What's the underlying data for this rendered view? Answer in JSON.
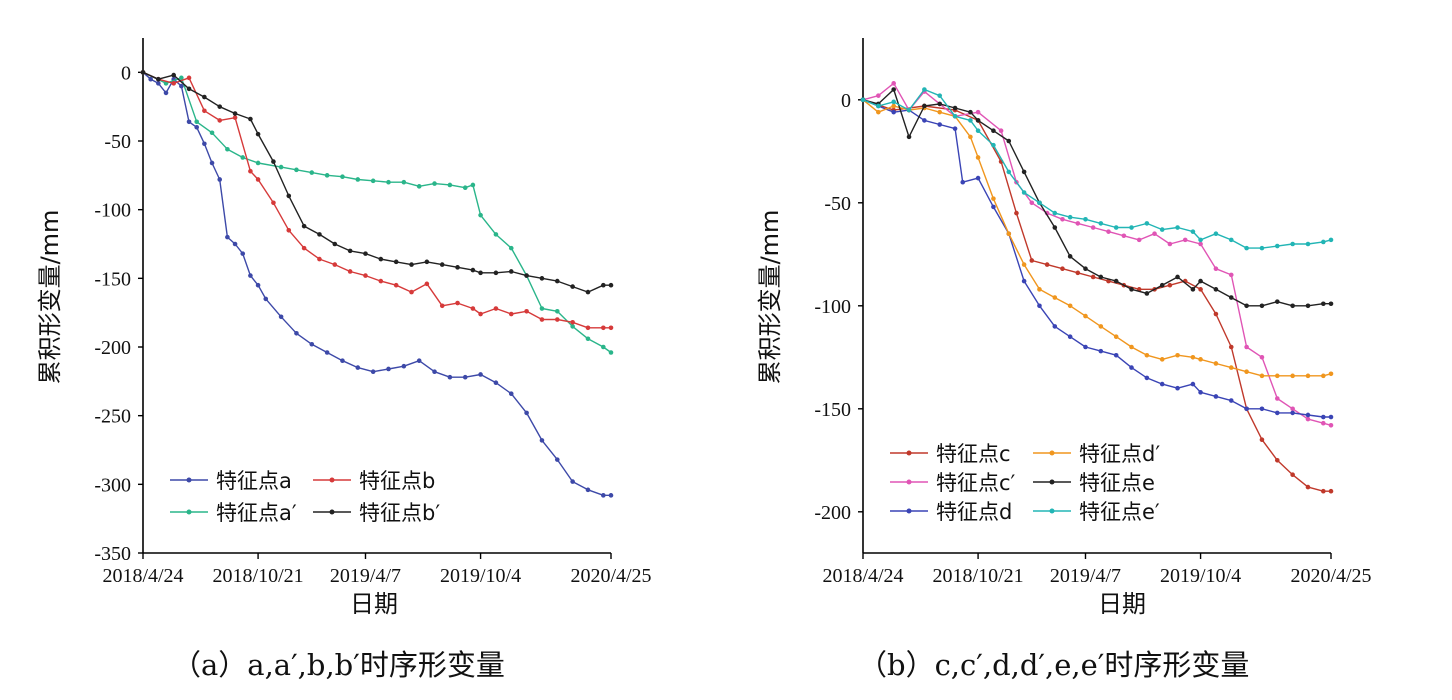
{
  "captions": {
    "a": "（a）a,a′,b,b′时序形变量",
    "b": "（b）c,c′,d,d′,e,e′时序形变量"
  },
  "chart_data": [
    {
      "type": "line",
      "title": "",
      "xlabel": "日期",
      "ylabel": "累积形变量/mm",
      "ylim": [
        -350,
        25
      ],
      "yticks": [
        0,
        -50,
        -100,
        -150,
        -200,
        -250,
        -300,
        -350
      ],
      "x_range": [
        "2018-04-24",
        "2020-04-25"
      ],
      "xticks": [
        "2018/4/24",
        "2018/10/21",
        "2019/4/7",
        "2019/10/4",
        "2020/4/25"
      ],
      "grid": false,
      "legend_position": "bottom-left",
      "legend_columns": 2,
      "series": [
        {
          "name": "特征点a",
          "color": "#3d49a8",
          "x": [
            "2018-04-24",
            "2018-05-06",
            "2018-05-18",
            "2018-05-30",
            "2018-06-11",
            "2018-06-23",
            "2018-07-05",
            "2018-07-17",
            "2018-07-29",
            "2018-08-10",
            "2018-08-22",
            "2018-09-03",
            "2018-09-15",
            "2018-09-27",
            "2018-10-09",
            "2018-10-21",
            "2018-11-02",
            "2018-11-26",
            "2018-12-20",
            "2019-01-13",
            "2019-02-06",
            "2019-03-02",
            "2019-03-26",
            "2019-04-19",
            "2019-05-13",
            "2019-06-06",
            "2019-06-30",
            "2019-07-24",
            "2019-08-17",
            "2019-09-10",
            "2019-10-04",
            "2019-10-28",
            "2019-11-21",
            "2019-12-15",
            "2020-01-08",
            "2020-02-01",
            "2020-02-25",
            "2020-03-20",
            "2020-04-13",
            "2020-04-25"
          ],
          "y": [
            0,
            -5,
            -8,
            -15,
            -5,
            -10,
            -36,
            -40,
            -52,
            -66,
            -78,
            -120,
            -125,
            -132,
            -148,
            -155,
            -165,
            -178,
            -190,
            -198,
            -204,
            -210,
            -215,
            -218,
            -216,
            -214,
            -210,
            -218,
            -222,
            -222,
            -220,
            -226,
            -234,
            -248,
            -268,
            -282,
            -298,
            -304,
            -308,
            -308
          ]
        },
        {
          "name": "特征点a′",
          "color": "#2ab58a",
          "x": [
            "2018-04-24",
            "2018-05-30",
            "2018-06-23",
            "2018-07-17",
            "2018-08-10",
            "2018-09-03",
            "2018-09-27",
            "2018-10-21",
            "2018-11-26",
            "2018-12-20",
            "2019-01-13",
            "2019-02-06",
            "2019-03-02",
            "2019-03-26",
            "2019-04-19",
            "2019-05-13",
            "2019-06-06",
            "2019-06-30",
            "2019-07-24",
            "2019-08-17",
            "2019-09-10",
            "2019-09-22",
            "2019-10-04",
            "2019-10-28",
            "2019-11-21",
            "2019-12-15",
            "2020-01-08",
            "2020-02-01",
            "2020-02-25",
            "2020-03-20",
            "2020-04-13",
            "2020-04-25"
          ],
          "y": [
            0,
            -8,
            -4,
            -36,
            -44,
            -56,
            -62,
            -66,
            -69,
            -71,
            -73,
            -75,
            -76,
            -78,
            -79,
            -80,
            -80,
            -83,
            -81,
            -82,
            -84,
            -82,
            -104,
            -118,
            -128,
            -148,
            -172,
            -174,
            -185,
            -194,
            -200,
            -204
          ]
        },
        {
          "name": "特征点b",
          "color": "#d63a3a",
          "x": [
            "2018-04-24",
            "2018-05-18",
            "2018-06-11",
            "2018-07-05",
            "2018-07-29",
            "2018-08-22",
            "2018-09-15",
            "2018-10-09",
            "2018-10-21",
            "2018-11-14",
            "2018-12-08",
            "2019-01-01",
            "2019-01-25",
            "2019-02-18",
            "2019-03-14",
            "2019-04-07",
            "2019-05-01",
            "2019-05-25",
            "2019-06-18",
            "2019-07-12",
            "2019-08-05",
            "2019-08-29",
            "2019-09-22",
            "2019-10-04",
            "2019-10-28",
            "2019-11-21",
            "2019-12-15",
            "2020-01-08",
            "2020-02-01",
            "2020-02-25",
            "2020-03-20",
            "2020-04-13",
            "2020-04-25"
          ],
          "y": [
            0,
            -5,
            -8,
            -4,
            -28,
            -35,
            -33,
            -72,
            -78,
            -95,
            -115,
            -128,
            -136,
            -140,
            -145,
            -148,
            -152,
            -155,
            -160,
            -154,
            -170,
            -168,
            -172,
            -176,
            -172,
            -176,
            -174,
            -180,
            -180,
            -182,
            -186,
            -186,
            -186
          ]
        },
        {
          "name": "特征点b′",
          "color": "#222222",
          "x": [
            "2018-04-24",
            "2018-05-18",
            "2018-06-11",
            "2018-07-05",
            "2018-07-29",
            "2018-08-22",
            "2018-09-15",
            "2018-10-09",
            "2018-10-21",
            "2018-11-14",
            "2018-12-08",
            "2019-01-01",
            "2019-01-25",
            "2019-02-18",
            "2019-03-14",
            "2019-04-07",
            "2019-05-01",
            "2019-05-25",
            "2019-06-18",
            "2019-07-12",
            "2019-08-05",
            "2019-08-29",
            "2019-09-22",
            "2019-10-04",
            "2019-10-28",
            "2019-11-21",
            "2019-12-15",
            "2020-01-08",
            "2020-02-01",
            "2020-02-25",
            "2020-03-20",
            "2020-04-13",
            "2020-04-25"
          ],
          "y": [
            0,
            -5,
            -2,
            -12,
            -18,
            -25,
            -30,
            -34,
            -45,
            -65,
            -90,
            -112,
            -118,
            -125,
            -130,
            -132,
            -136,
            -138,
            -140,
            -138,
            -140,
            -142,
            -144,
            -146,
            -146,
            -145,
            -148,
            -150,
            -152,
            -156,
            -160,
            -155,
            -155
          ]
        }
      ]
    },
    {
      "type": "line",
      "title": "",
      "xlabel": "日期",
      "ylabel": "累积形变量/mm",
      "ylim": [
        -220,
        30
      ],
      "yticks": [
        0,
        -50,
        -100,
        -150,
        -200
      ],
      "x_range": [
        "2018-04-24",
        "2020-04-25"
      ],
      "xticks": [
        "2018/4/24",
        "2018/10/21",
        "2019/4/7",
        "2019/10/4",
        "2020/4/25"
      ],
      "grid": false,
      "legend_position": "bottom-left",
      "legend_columns": 2,
      "series": [
        {
          "name": "特征点c",
          "color": "#c0392b",
          "x": [
            "2018-04-24",
            "2018-06-11",
            "2018-07-29",
            "2018-09-15",
            "2018-10-21",
            "2018-11-26",
            "2018-12-20",
            "2019-01-13",
            "2019-02-06",
            "2019-03-02",
            "2019-03-26",
            "2019-04-19",
            "2019-05-13",
            "2019-06-06",
            "2019-06-30",
            "2019-07-24",
            "2019-08-17",
            "2019-09-10",
            "2019-10-04",
            "2019-10-28",
            "2019-11-21",
            "2019-12-15",
            "2020-01-08",
            "2020-02-01",
            "2020-02-25",
            "2020-03-20",
            "2020-04-13",
            "2020-04-25"
          ],
          "y": [
            0,
            -5,
            -3,
            -5,
            -10,
            -30,
            -55,
            -78,
            -80,
            -82,
            -84,
            -86,
            -88,
            -90,
            -92,
            -92,
            -90,
            -88,
            -92,
            -104,
            -120,
            -150,
            -165,
            -175,
            -182,
            -188,
            -190,
            -190
          ]
        },
        {
          "name": "特征点c′",
          "color": "#e055b5",
          "x": [
            "2018-04-24",
            "2018-05-18",
            "2018-06-11",
            "2018-07-05",
            "2018-07-29",
            "2018-08-22",
            "2018-09-15",
            "2018-10-21",
            "2018-11-26",
            "2018-12-20",
            "2019-01-13",
            "2019-02-06",
            "2019-03-02",
            "2019-03-26",
            "2019-04-19",
            "2019-05-13",
            "2019-06-06",
            "2019-06-30",
            "2019-07-24",
            "2019-08-17",
            "2019-09-10",
            "2019-10-04",
            "2019-10-28",
            "2019-11-21",
            "2019-12-15",
            "2020-01-08",
            "2020-02-01",
            "2020-02-25",
            "2020-03-20",
            "2020-04-13",
            "2020-04-25"
          ],
          "y": [
            0,
            2,
            8,
            -5,
            4,
            -2,
            -8,
            -6,
            -15,
            -40,
            -50,
            -55,
            -58,
            -60,
            -62,
            -64,
            -66,
            -68,
            -65,
            -70,
            -68,
            -70,
            -82,
            -85,
            -120,
            -125,
            -145,
            -150,
            -155,
            -157,
            -158
          ]
        },
        {
          "name": "特征点d",
          "color": "#3a44b5",
          "x": [
            "2018-04-24",
            "2018-05-18",
            "2018-06-11",
            "2018-07-05",
            "2018-07-29",
            "2018-08-22",
            "2018-09-15",
            "2018-09-27",
            "2018-10-21",
            "2018-11-14",
            "2018-12-08",
            "2019-01-01",
            "2019-01-25",
            "2019-02-18",
            "2019-03-14",
            "2019-04-07",
            "2019-05-01",
            "2019-05-25",
            "2019-06-18",
            "2019-07-12",
            "2019-08-05",
            "2019-08-29",
            "2019-09-22",
            "2019-10-04",
            "2019-10-28",
            "2019-11-21",
            "2019-12-15",
            "2020-01-08",
            "2020-02-01",
            "2020-02-25",
            "2020-03-20",
            "2020-04-13",
            "2020-04-25"
          ],
          "y": [
            0,
            -3,
            -6,
            -5,
            -10,
            -12,
            -14,
            -40,
            -38,
            -52,
            -65,
            -88,
            -100,
            -110,
            -115,
            -120,
            -122,
            -124,
            -130,
            -135,
            -138,
            -140,
            -138,
            -142,
            -144,
            -146,
            -150,
            -150,
            -152,
            -152,
            -153,
            -154,
            -154
          ]
        },
        {
          "name": "特征点d′",
          "color": "#f0961e",
          "x": [
            "2018-04-24",
            "2018-05-18",
            "2018-06-11",
            "2018-07-05",
            "2018-07-29",
            "2018-08-22",
            "2018-09-15",
            "2018-10-09",
            "2018-10-21",
            "2018-11-14",
            "2018-12-08",
            "2019-01-01",
            "2019-01-25",
            "2019-02-18",
            "2019-03-14",
            "2019-04-07",
            "2019-05-01",
            "2019-05-25",
            "2019-06-18",
            "2019-07-12",
            "2019-08-05",
            "2019-08-29",
            "2019-09-22",
            "2019-10-04",
            "2019-10-28",
            "2019-11-21",
            "2019-12-15",
            "2020-01-08",
            "2020-02-01",
            "2020-02-25",
            "2020-03-20",
            "2020-04-13",
            "2020-04-25"
          ],
          "y": [
            0,
            -6,
            -3,
            -5,
            -4,
            -6,
            -8,
            -18,
            -28,
            -48,
            -65,
            -80,
            -92,
            -96,
            -100,
            -105,
            -110,
            -115,
            -120,
            -124,
            -126,
            -124,
            -125,
            -126,
            -128,
            -130,
            -132,
            -134,
            -134,
            -134,
            -134,
            -134,
            -133
          ]
        },
        {
          "name": "特征点e",
          "color": "#222222",
          "x": [
            "2018-04-24",
            "2018-05-18",
            "2018-06-11",
            "2018-07-05",
            "2018-07-29",
            "2018-08-22",
            "2018-09-15",
            "2018-10-09",
            "2018-10-21",
            "2018-11-14",
            "2018-12-08",
            "2019-01-01",
            "2019-01-25",
            "2019-02-18",
            "2019-03-14",
            "2019-04-07",
            "2019-05-01",
            "2019-05-25",
            "2019-06-18",
            "2019-07-12",
            "2019-08-05",
            "2019-08-29",
            "2019-09-22",
            "2019-10-04",
            "2019-10-28",
            "2019-11-21",
            "2019-12-15",
            "2020-01-08",
            "2020-02-01",
            "2020-02-25",
            "2020-03-20",
            "2020-04-13",
            "2020-04-25"
          ],
          "y": [
            0,
            -2,
            5,
            -18,
            -3,
            -2,
            -4,
            -6,
            -10,
            -15,
            -20,
            -35,
            -50,
            -62,
            -76,
            -82,
            -86,
            -88,
            -92,
            -94,
            -90,
            -86,
            -92,
            -88,
            -92,
            -96,
            -100,
            -100,
            -98,
            -100,
            -100,
            -99,
            -99
          ]
        },
        {
          "name": "特征点e′",
          "color": "#22b5b5",
          "x": [
            "2018-04-24",
            "2018-05-18",
            "2018-06-11",
            "2018-07-05",
            "2018-07-29",
            "2018-08-22",
            "2018-09-15",
            "2018-10-09",
            "2018-10-21",
            "2018-11-14",
            "2018-12-08",
            "2019-01-01",
            "2019-01-25",
            "2019-02-18",
            "2019-03-14",
            "2019-04-07",
            "2019-05-01",
            "2019-05-25",
            "2019-06-18",
            "2019-07-12",
            "2019-08-05",
            "2019-08-29",
            "2019-09-22",
            "2019-10-04",
            "2019-10-28",
            "2019-11-21",
            "2019-12-15",
            "2020-01-08",
            "2020-02-01",
            "2020-02-25",
            "2020-03-20",
            "2020-04-13",
            "2020-04-25"
          ],
          "y": [
            0,
            -3,
            -1,
            -5,
            5,
            2,
            -8,
            -10,
            -15,
            -22,
            -35,
            -45,
            -50,
            -55,
            -57,
            -58,
            -60,
            -62,
            -62,
            -60,
            -63,
            -62,
            -64,
            -68,
            -65,
            -68,
            -72,
            -72,
            -71,
            -70,
            -70,
            -69,
            -68
          ]
        }
      ]
    }
  ]
}
